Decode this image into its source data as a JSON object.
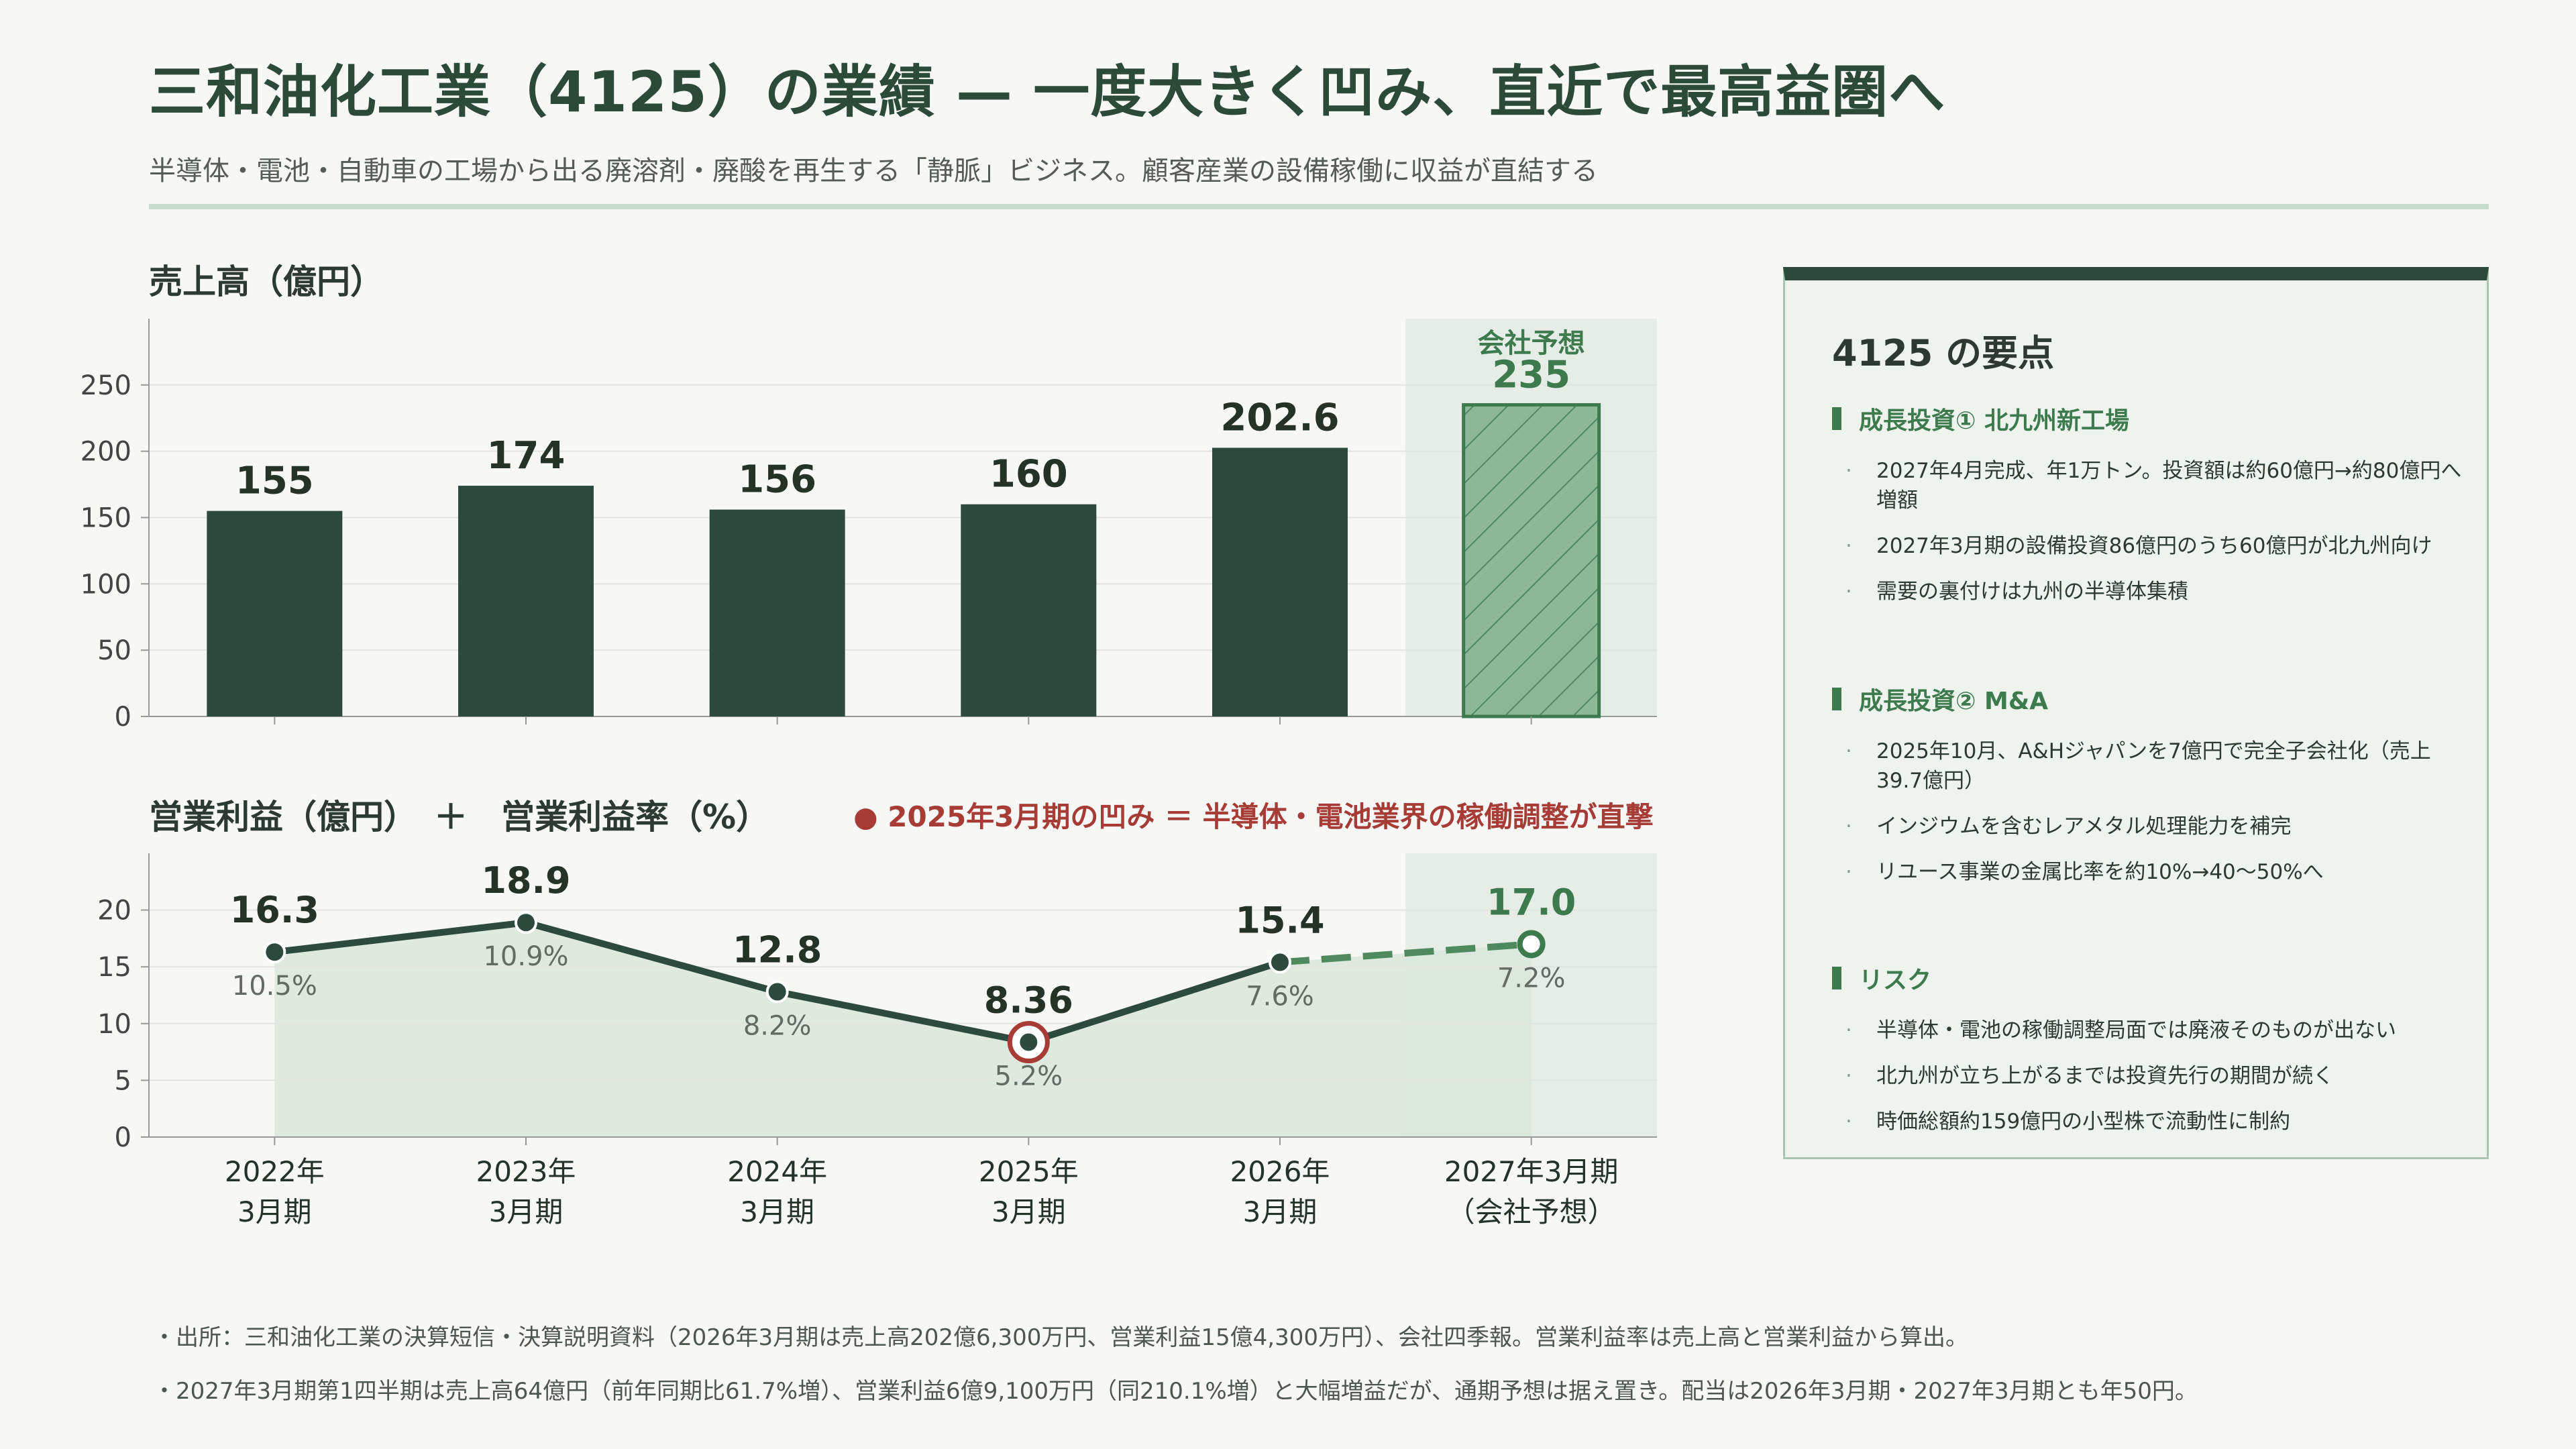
{
  "header": {
    "title": "三和油化工業（4125）の業績 — 一度大きく凹み、直近で最高益圏へ",
    "subtitle": "半導体・電池・自動車の工場から出る廃溶剤・廃酸を再生する「静脈」ビジネス。顧客産業の設備稼働に収益が直結する"
  },
  "colors": {
    "bar": "#2c4a3d",
    "forecast_bar": "#8cb896",
    "forecast_band": "#e5ede6",
    "line": "#2c4a3d",
    "dip": "#a63c35",
    "area": "#d9e6da"
  },
  "chart_data": [
    {
      "type": "bar",
      "title": "売上高（億円）",
      "categories": [
        "2022年3月期",
        "2023年3月期",
        "2024年3月期",
        "2025年3月期",
        "2026年3月期",
        "2027年3月期（会社予想）"
      ],
      "values": [
        155,
        174,
        156,
        160,
        202.6,
        235
      ],
      "value_labels": [
        "155",
        "174",
        "156",
        "160",
        "202.6",
        "235"
      ],
      "ylim": [
        0,
        300
      ],
      "yticks": [
        0,
        50,
        100,
        150,
        200,
        250
      ],
      "forecast_index": 5,
      "forecast_label": "会社予想",
      "grid": true
    },
    {
      "type": "line",
      "title": "営業利益（億円）　＋　営業利益率（%）",
      "annotation": "● 2025年3月期の凹み ＝ 半導体・電池業界の稼働調整が直撃",
      "categories": [
        "2022年3月期",
        "2023年3月期",
        "2024年3月期",
        "2025年3月期",
        "2026年3月期",
        "2027年3月期（会社予想）"
      ],
      "x_labels": [
        [
          "2022年",
          "3月期"
        ],
        [
          "2023年",
          "3月期"
        ],
        [
          "2024年",
          "3月期"
        ],
        [
          "2025年",
          "3月期"
        ],
        [
          "2026年",
          "3月期"
        ],
        [
          "2027年3月期",
          "（会社予想）"
        ]
      ],
      "series": [
        {
          "name": "営業利益（億円）",
          "values": [
            16.3,
            18.9,
            12.8,
            8.36,
            15.4,
            17.0
          ],
          "labels": [
            "16.3",
            "18.9",
            "12.8",
            "8.36",
            "15.4",
            "17.0"
          ]
        },
        {
          "name": "営業利益率（%）",
          "values": [
            10.5,
            10.9,
            8.2,
            5.2,
            7.6,
            7.2
          ],
          "labels": [
            "10.5%",
            "10.9%",
            "8.2%",
            "5.2%",
            "7.6%",
            "7.2%"
          ]
        }
      ],
      "ylim": [
        0,
        25
      ],
      "yticks": [
        0,
        5,
        10,
        15,
        20
      ],
      "dip_index": 3,
      "forecast_index": 5,
      "grid": true
    }
  ],
  "panel": {
    "title": "4125 の要点",
    "sections": [
      {
        "heading": "成長投資① 北九州新工場",
        "bullets": [
          "2027年4月完成、年1万トン。投資額は約60億円→約80億円へ増額",
          "2027年3月期の設備投資86億円のうち60億円が北九州向け",
          "需要の裏付けは九州の半導体集積"
        ]
      },
      {
        "heading": "成長投資② M&A",
        "bullets": [
          "2025年10月、A&Hジャパンを7億円で完全子会社化（売上39.7億円）",
          "インジウムを含むレアメタル処理能力を補完",
          "リユース事業の金属比率を約10%→40〜50%へ"
        ]
      },
      {
        "heading": "リスク",
        "bullets": [
          "半導体・電池の稼働調整局面では廃液そのものが出ない",
          "北九州が立ち上がるまでは投資先行の期間が続く",
          "時価総額約159億円の小型株で流動性に制約"
        ]
      }
    ]
  },
  "footnotes": [
    "・出所：三和油化工業の決算短信・決算説明資料（2026年3月期は売上高202億6,300万円、営業利益15億4,300万円）、会社四季報。営業利益率は売上高と営業利益から算出。",
    "・2027年3月期第1四半期は売上高64億円（前年同期比61.7%増）、営業利益6億9,100万円（同210.1%増）と大幅増益だが、通期予想は据え置き。配当は2026年3月期・2027年3月期とも年50円。"
  ]
}
